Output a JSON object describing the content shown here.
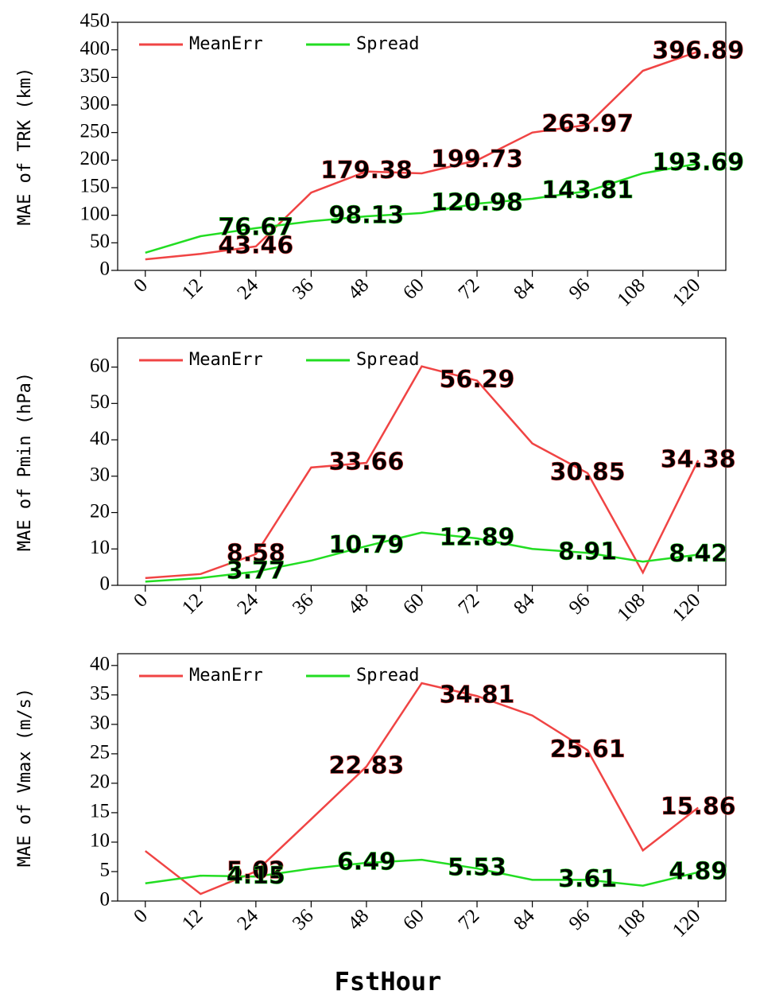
{
  "xlabel": "FstHour",
  "chart_data": [
    {
      "type": "line",
      "ylabel": "MAE of TRK (km)",
      "x": [
        0,
        12,
        24,
        36,
        48,
        60,
        72,
        84,
        96,
        108,
        120
      ],
      "xlim": [
        -6,
        126
      ],
      "xticks": [
        0,
        12,
        24,
        36,
        48,
        60,
        72,
        84,
        96,
        108,
        120
      ],
      "ylim": [
        0,
        450
      ],
      "yticks": [
        0,
        50,
        100,
        150,
        200,
        250,
        300,
        350,
        400,
        450
      ],
      "legend": "upper left",
      "series": [
        {
          "name": "MeanErr",
          "color": "#f04444",
          "values": [
            20,
            30,
            43.46,
            141,
            179.38,
            176,
            199.73,
            250,
            263.97,
            362,
            396.89
          ]
        },
        {
          "name": "Spread",
          "color": "#22dd22",
          "values": [
            32,
            62,
            76.67,
            89,
            98.13,
            104,
            120.98,
            130,
            143.81,
            176,
            193.69
          ]
        }
      ]
    },
    {
      "type": "line",
      "ylabel": "MAE of Pmin (hPa)",
      "x": [
        0,
        12,
        24,
        36,
        48,
        60,
        72,
        84,
        96,
        108,
        120
      ],
      "xlim": [
        -6,
        126
      ],
      "xticks": [
        0,
        12,
        24,
        36,
        48,
        60,
        72,
        84,
        96,
        108,
        120
      ],
      "ylim": [
        0,
        68
      ],
      "yticks": [
        0,
        10,
        20,
        30,
        40,
        50,
        60
      ],
      "legend": "upper left",
      "series": [
        {
          "name": "MeanErr",
          "color": "#f04444",
          "values": [
            2,
            3.1,
            8.58,
            32.4,
            33.66,
            60.2,
            56.29,
            39,
            30.85,
            3.5,
            34.38
          ]
        },
        {
          "name": "Spread",
          "color": "#22dd22",
          "values": [
            1,
            2,
            3.77,
            6.8,
            10.79,
            14.5,
            12.89,
            10,
            8.91,
            6.5,
            8.42
          ]
        }
      ]
    },
    {
      "type": "line",
      "ylabel": "MAE of Vmax (m/s)",
      "x": [
        0,
        12,
        24,
        36,
        48,
        60,
        72,
        84,
        96,
        108,
        120
      ],
      "xlim": [
        -6,
        126
      ],
      "xticks": [
        0,
        12,
        24,
        36,
        48,
        60,
        72,
        84,
        96,
        108,
        120
      ],
      "ylim": [
        0,
        42
      ],
      "yticks": [
        0,
        5,
        10,
        15,
        20,
        25,
        30,
        35,
        40
      ],
      "legend": "upper left",
      "series": [
        {
          "name": "MeanErr",
          "color": "#f04444",
          "values": [
            8.5,
            1.2,
            5.02,
            13.9,
            22.83,
            37,
            34.81,
            31.5,
            25.61,
            8.6,
            15.86
          ]
        },
        {
          "name": "Spread",
          "color": "#22dd22",
          "values": [
            3,
            4.3,
            4.15,
            5.5,
            6.49,
            7,
            5.53,
            3.6,
            3.61,
            2.6,
            4.89
          ]
        }
      ]
    }
  ]
}
